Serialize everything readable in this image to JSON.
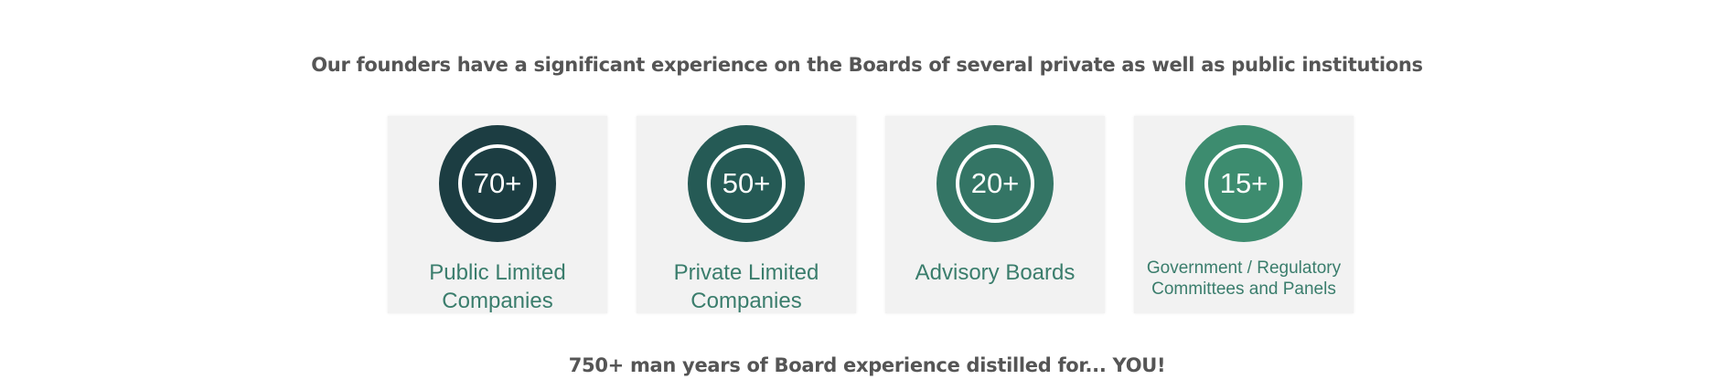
{
  "headline": "Our founders have a significant experience on the Boards of several private as well as public institutions",
  "cards": [
    {
      "value": "70+",
      "label_line1": "Public Limited",
      "label_line2": "Companies",
      "color": "#1c3d42"
    },
    {
      "value": "50+",
      "label_line1": "Private Limited",
      "label_line2": "Companies",
      "color": "#255a55"
    },
    {
      "value": "20+",
      "label_line1": "Advisory Boards",
      "label_line2": "",
      "color": "#347565"
    },
    {
      "value": "15+",
      "label_line1": "Government / Regulatory",
      "label_line2": "Committees and Panels",
      "color": "#3d8c6f"
    }
  ],
  "footer": "750+ man years of Board experience distilled for... YOU!",
  "colors": {
    "text_gray": "#555555",
    "label_green": "#3a7d6c",
    "card_bg": "#f2f2f2"
  }
}
